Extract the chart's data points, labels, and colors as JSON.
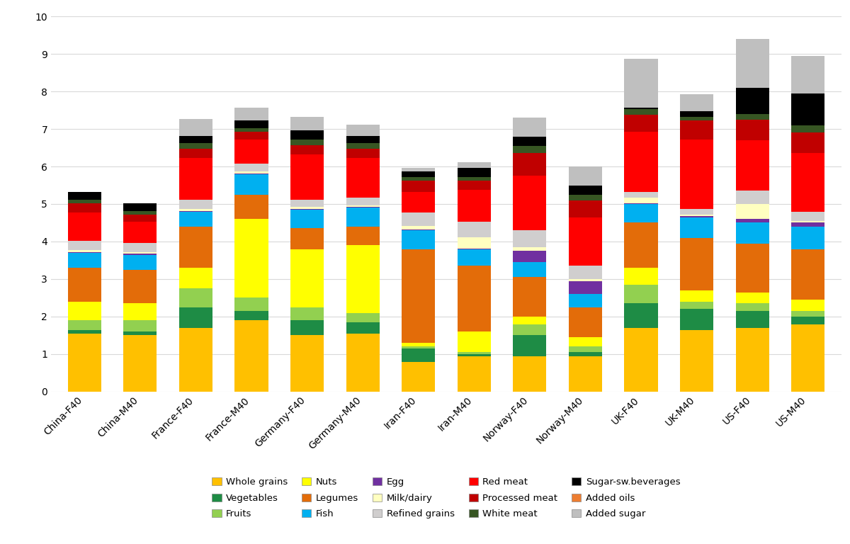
{
  "categories": [
    "China-F40",
    "China-M40",
    "France-F40",
    "France-M40",
    "Germany-F40",
    "Germany-M40",
    "Iran-F40",
    "Iran-M40",
    "Norway-F40",
    "Norway-M40",
    "UK-F40",
    "UK-M40",
    "US-F40",
    "US-M40"
  ],
  "components": [
    "Whole grains",
    "Vegetables",
    "Fruits",
    "Nuts",
    "Legumes",
    "Fish",
    "Egg",
    "Milk/dairy",
    "Refined grains",
    "Red meat",
    "Processed meat",
    "White meat",
    "Sugar-sw.beverages",
    "Added oils",
    "Added sugar"
  ],
  "colors": [
    "#FFC000",
    "#1E8C45",
    "#92D050",
    "#FFFF00",
    "#E36C09",
    "#00B0F0",
    "#7030A0",
    "#FFFFC0",
    "#D0CECE",
    "#FF0000",
    "#C00000",
    "#375623",
    "#000000",
    "#ED7D31",
    "#BFBFBF"
  ],
  "data": {
    "China-F40": [
      1.55,
      0.1,
      0.25,
      0.5,
      0.9,
      0.4,
      0.02,
      0.05,
      0.25,
      0.75,
      0.25,
      0.1,
      0.2,
      0.0,
      0.0
    ],
    "China-M40": [
      1.5,
      0.1,
      0.3,
      0.45,
      0.9,
      0.4,
      0.02,
      0.05,
      0.25,
      0.55,
      0.2,
      0.1,
      0.2,
      0.0,
      0.0
    ],
    "France-F40": [
      1.7,
      0.55,
      0.5,
      0.55,
      1.1,
      0.4,
      0.02,
      0.05,
      0.25,
      1.1,
      0.25,
      0.15,
      0.2,
      0.0,
      0.45
    ],
    "France-M40": [
      1.9,
      0.25,
      0.35,
      2.1,
      0.65,
      0.55,
      0.02,
      0.05,
      0.2,
      0.65,
      0.2,
      0.1,
      0.2,
      0.0,
      0.35
    ],
    "Germany-F40": [
      1.5,
      0.4,
      0.35,
      1.55,
      0.55,
      0.5,
      0.02,
      0.05,
      0.2,
      1.2,
      0.25,
      0.15,
      0.25,
      0.0,
      0.35
    ],
    "Germany-M40": [
      1.55,
      0.3,
      0.25,
      1.8,
      0.5,
      0.5,
      0.02,
      0.05,
      0.2,
      1.05,
      0.25,
      0.15,
      0.2,
      0.0,
      0.3
    ],
    "Iran-F40": [
      0.8,
      0.35,
      0.05,
      0.1,
      2.5,
      0.5,
      0.02,
      0.1,
      0.35,
      0.55,
      0.3,
      0.1,
      0.15,
      0.0,
      0.1
    ],
    "Iran-M40": [
      0.95,
      0.05,
      0.05,
      0.55,
      1.75,
      0.45,
      0.02,
      0.3,
      0.4,
      0.85,
      0.25,
      0.1,
      0.25,
      0.0,
      0.15
    ],
    "Norway-F40": [
      0.95,
      0.55,
      0.3,
      0.2,
      1.05,
      0.4,
      0.3,
      0.1,
      0.45,
      1.45,
      0.6,
      0.2,
      0.25,
      0.0,
      0.5
    ],
    "Norway-M40": [
      0.95,
      0.1,
      0.15,
      0.25,
      0.8,
      0.35,
      0.35,
      0.05,
      0.35,
      1.3,
      0.45,
      0.15,
      0.25,
      0.0,
      0.5
    ],
    "UK-F40": [
      1.7,
      0.65,
      0.5,
      0.45,
      1.2,
      0.5,
      0.02,
      0.15,
      0.15,
      1.6,
      0.45,
      0.15,
      0.05,
      0.0,
      1.3
    ],
    "UK-M40": [
      1.65,
      0.55,
      0.2,
      0.3,
      1.4,
      0.55,
      0.02,
      0.05,
      0.15,
      1.85,
      0.5,
      0.1,
      0.15,
      0.0,
      0.45
    ],
    "US-F40": [
      1.7,
      0.45,
      0.2,
      0.3,
      1.3,
      0.55,
      0.1,
      0.4,
      0.35,
      1.35,
      0.55,
      0.15,
      0.7,
      0.0,
      1.3
    ],
    "US-M40": [
      1.8,
      0.2,
      0.15,
      0.3,
      1.35,
      0.6,
      0.1,
      0.05,
      0.25,
      1.55,
      0.55,
      0.2,
      0.85,
      0.0,
      1.0
    ]
  },
  "ylim": [
    0,
    10
  ],
  "yticks": [
    0,
    1,
    2,
    3,
    4,
    5,
    6,
    7,
    8,
    9,
    10
  ],
  "grid_color": "#D9D9D9"
}
